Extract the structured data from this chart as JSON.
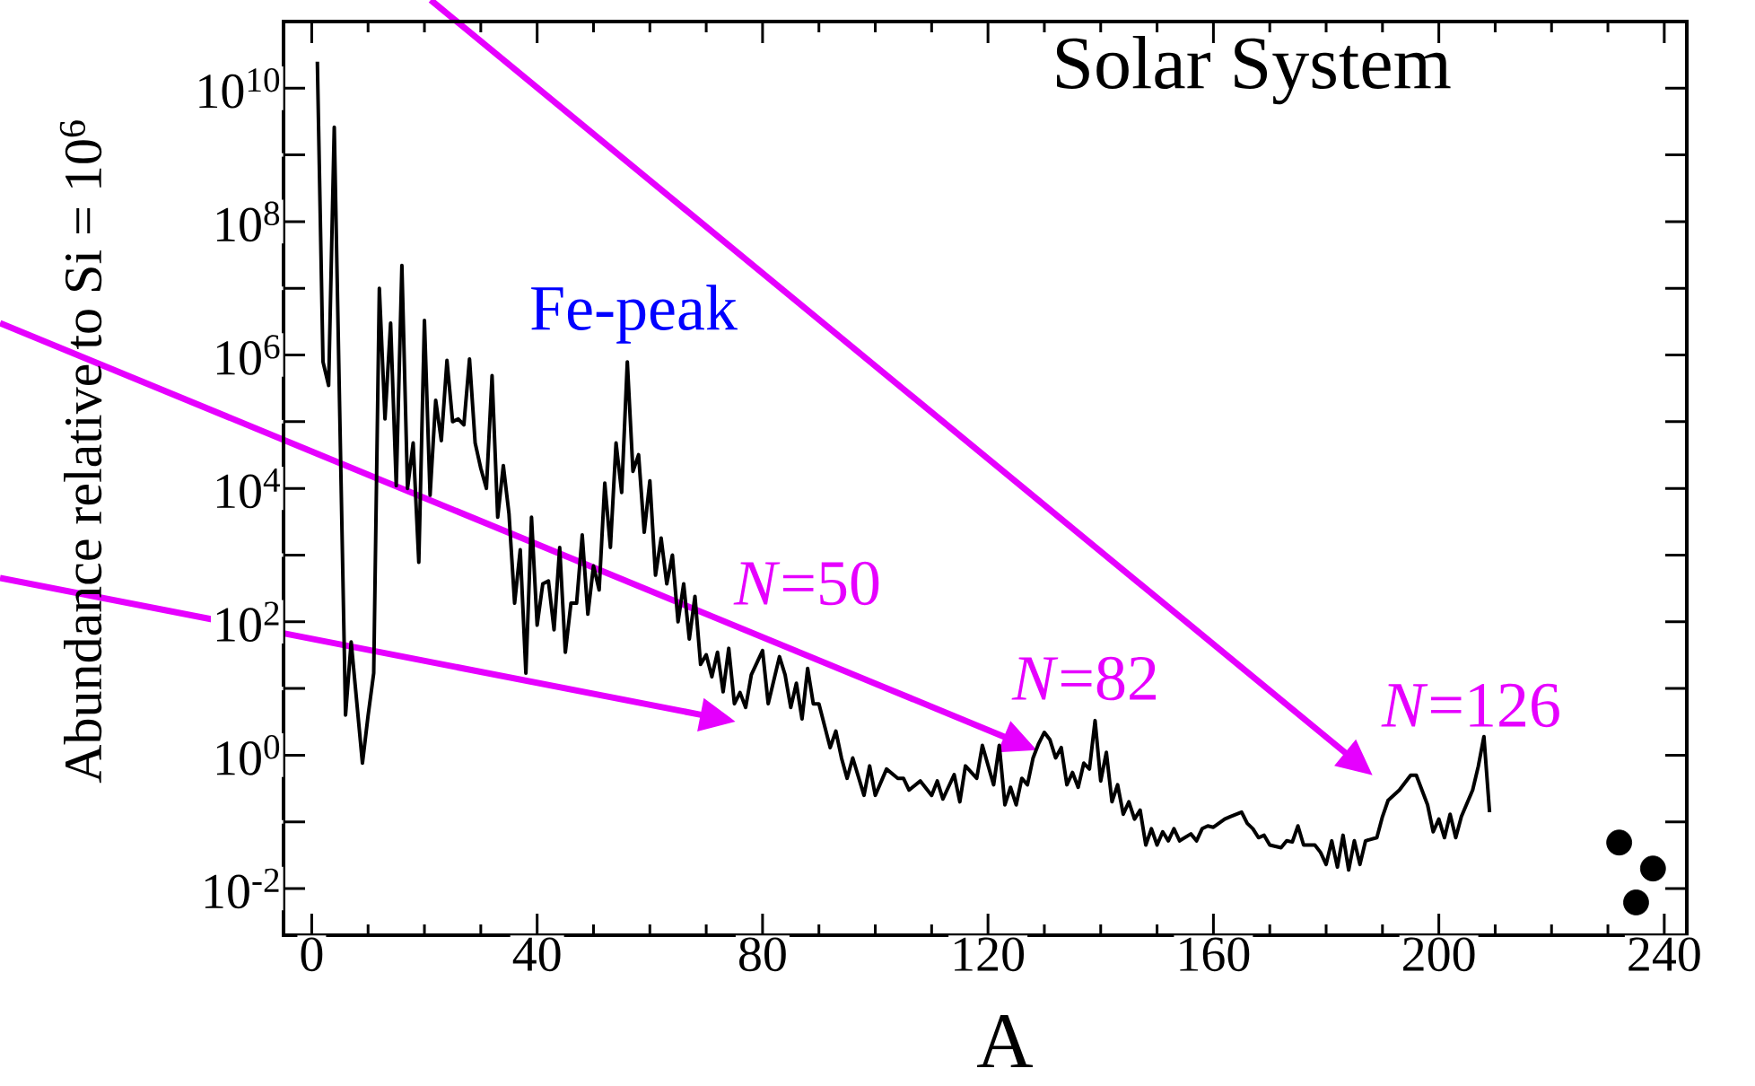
{
  "chart_data": {
    "type": "line",
    "title": "Solar System",
    "xlabel": "A",
    "ylabel": "Abundance relative to Si = 10$^{6}$",
    "log": true,
    "xlim": [
      -5,
      244
    ],
    "ylim": [
      0.002,
      100000000000.0
    ],
    "xticks": [
      0,
      40,
      80,
      120,
      160,
      200,
      240
    ],
    "yticks": [
      {
        "value": 0.01,
        "label": "10$^{-2}$"
      },
      {
        "value": 0.1,
        "label": null
      },
      {
        "value": 1,
        "label": "10$^{0}$"
      },
      {
        "value": 10,
        "label": null
      },
      {
        "value": 100,
        "label": "10$^{2}$"
      },
      {
        "value": 1000,
        "label": null
      },
      {
        "value": 10000,
        "label": "10$^{4}$"
      },
      {
        "value": 100000,
        "label": null
      },
      {
        "value": 1000000,
        "label": "10$^{6}$"
      },
      {
        "value": 10000000,
        "label": null
      },
      {
        "value": 100000000,
        "label": "10$^{8}$"
      },
      {
        "value": 1000000000,
        "label": null
      },
      {
        "value": 10000000000,
        "label": "10$^{10}$"
      }
    ],
    "series": [
      {
        "color": "#000000",
        "x": [
          1,
          2,
          3,
          4,
          6,
          7,
          9,
          10,
          11,
          12,
          13,
          14,
          15,
          16,
          17,
          18,
          19,
          20,
          21,
          22,
          23,
          24,
          25,
          26,
          27,
          28,
          29,
          30,
          31,
          32,
          33,
          34,
          35,
          36,
          37,
          38,
          39,
          40,
          41,
          42,
          43,
          44,
          45,
          46,
          47,
          48,
          49,
          50,
          51,
          52,
          53,
          54,
          55,
          56,
          57,
          58,
          59,
          60,
          61,
          62,
          63,
          64,
          65,
          66,
          67,
          68,
          69,
          70,
          71,
          72,
          73,
          74,
          75,
          76,
          77,
          78,
          80,
          81,
          83,
          84,
          85,
          86,
          87,
          88,
          89,
          90,
          92,
          93,
          94,
          95,
          96,
          98,
          99,
          100,
          102,
          104,
          105,
          106,
          108,
          110,
          111,
          112,
          114,
          115,
          116,
          118,
          119,
          121,
          122,
          123,
          124,
          125,
          126,
          127,
          128,
          129,
          130,
          131,
          132,
          133,
          134,
          135,
          136,
          137,
          138,
          139,
          140,
          141,
          142,
          143,
          144,
          145,
          146,
          147,
          148,
          149,
          150,
          151,
          152,
          153,
          154,
          156,
          157,
          158,
          159,
          160,
          162,
          163,
          165,
          166,
          167,
          168,
          169,
          170,
          172,
          173,
          174,
          175,
          176,
          178,
          179,
          180,
          181,
          182,
          183,
          184,
          185,
          186,
          187,
          189,
          190,
          191,
          193,
          195,
          196,
          197,
          198,
          199,
          200,
          201,
          202,
          203,
          204,
          206,
          207,
          208,
          209
        ],
        "values": [
          25000000000.0,
          790000.0,
          350000.0,
          2600000000.0,
          4,
          50,
          0.76,
          3.9,
          17,
          10000000.0,
          110000.0,
          3000000.0,
          11000.0,
          22000000.0,
          10000.0,
          48000.0,
          780,
          3300000.0,
          7900,
          210000.0,
          52000.0,
          830000.0,
          100000.0,
          110000.0,
          90000.0,
          870000.0,
          48000.0,
          20000.0,
          10000.0,
          490000.0,
          3700,
          22000.0,
          4200,
          190,
          1200,
          17,
          3700,
          89,
          370,
          410,
          76,
          1300,
          35,
          190,
          190,
          2000,
          130,
          690,
          300,
          12000.0,
          1300,
          48000.0,
          8700,
          790000.0,
          18000.0,
          32000.0,
          2200,
          13000.0,
          500,
          1800,
          370,
          1000,
          100,
          370,
          55,
          240,
          23,
          32,
          15,
          35,
          8.9,
          40,
          5.9,
          8.7,
          5.2,
          16,
          37,
          5.9,
          30,
          16,
          5.2,
          12,
          3.5,
          20,
          5.9,
          5.9,
          1.3,
          2.3,
          0.91,
          0.45,
          0.91,
          0.25,
          0.69,
          0.25,
          0.62,
          0.45,
          0.45,
          0.3,
          0.41,
          0.25,
          0.41,
          0.22,
          0.51,
          0.2,
          0.69,
          0.45,
          1.4,
          0.36,
          1.4,
          0.18,
          0.33,
          0.18,
          0.45,
          0.36,
          0.91,
          1.5,
          2.2,
          1.7,
          0.91,
          1.3,
          0.36,
          0.55,
          0.33,
          0.76,
          0.62,
          3.3,
          0.41,
          1.1,
          0.2,
          0.36,
          0.13,
          0.2,
          0.11,
          0.15,
          0.045,
          0.079,
          0.045,
          0.071,
          0.052,
          0.079,
          0.052,
          0.066,
          0.052,
          0.079,
          0.087,
          0.083,
          0.11,
          0.12,
          0.14,
          0.095,
          0.079,
          0.058,
          0.063,
          0.045,
          0.041,
          0.052,
          0.05,
          0.087,
          0.045,
          0.045,
          0.035,
          0.023,
          0.052,
          0.021,
          0.063,
          0.019,
          0.052,
          0.023,
          0.052,
          0.058,
          0.12,
          0.21,
          0.3,
          0.5,
          0.5,
          0.3,
          0.18,
          0.071,
          0.11,
          0.058,
          0.13,
          0.058,
          0.12,
          0.3,
          0.68,
          1.9,
          0.14
        ]
      },
      {
        "type": "scatter",
        "color": "#000000",
        "marker": "circle",
        "x": [
          232,
          235,
          238
        ],
        "values": [
          0.049,
          0.0062,
          0.02
        ]
      }
    ],
    "annotations": [
      "Fe-peak",
      "*N*=50",
      "*N*=82",
      "*N*=126"
    ]
  }
}
